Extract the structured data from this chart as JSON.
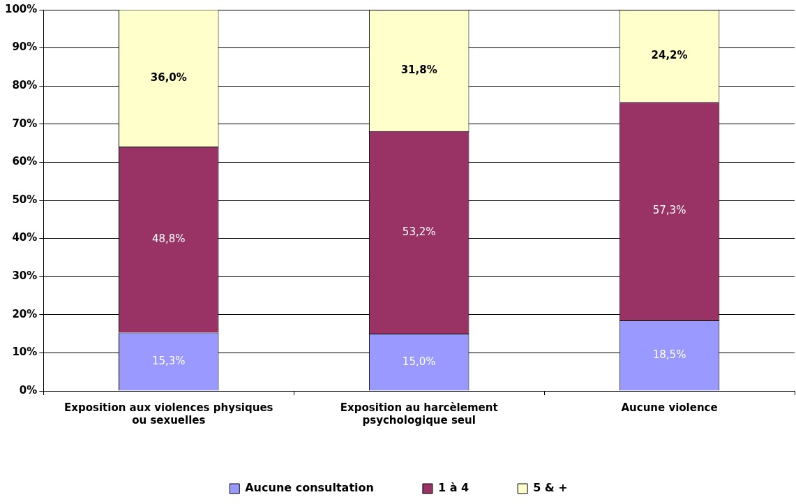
{
  "chart_data": {
    "type": "bar",
    "stacked": true,
    "categories": [
      "Exposition aux violences physiques ou sexuelles",
      "Exposition au harcèlement psychologique seul",
      "Aucune violence"
    ],
    "series": [
      {
        "name": "Aucune consultation",
        "color": "#9999ff",
        "values": [
          15.3,
          15.0,
          18.5
        ],
        "value_labels": [
          "15,3%",
          "15,0%",
          "18,5%"
        ]
      },
      {
        "name": "1 à 4",
        "color": "#993366",
        "values": [
          48.8,
          53.2,
          57.3
        ],
        "value_labels": [
          "48,8%",
          "53,2%",
          "57,3%"
        ]
      },
      {
        "name": "5 & +",
        "color": "#ffffcc",
        "values": [
          36.0,
          31.8,
          24.2
        ],
        "value_labels": [
          "36,0%",
          "31,8%",
          "24,2%"
        ]
      }
    ],
    "ylim": [
      0,
      100
    ],
    "yticks": [
      {
        "value": 0,
        "label": "0%"
      },
      {
        "value": 10,
        "label": "10%"
      },
      {
        "value": 20,
        "label": "20%"
      },
      {
        "value": 30,
        "label": "30%"
      },
      {
        "value": 40,
        "label": "40%"
      },
      {
        "value": 50,
        "label": "50%"
      },
      {
        "value": 60,
        "label": "60%"
      },
      {
        "value": 70,
        "label": "70%"
      },
      {
        "value": 80,
        "label": "80%"
      },
      {
        "value": 90,
        "label": "90%"
      },
      {
        "value": 100,
        "label": "100%"
      }
    ],
    "grid": "y",
    "legend": "bottom"
  }
}
